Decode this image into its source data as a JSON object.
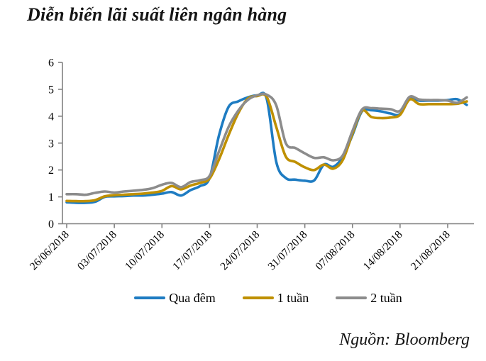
{
  "title": "Diễn biến lãi suất liên ngân hàng",
  "source": "Nguồn: Bloomberg",
  "colors": {
    "overnight_blue": "#1e7cc2",
    "one_week_gold": "#bf9000",
    "two_week_gray": "#8c8c8c",
    "axis_gray": "#808080",
    "text_black": "#000000"
  },
  "chart_data": {
    "type": "line",
    "title": "Diễn biến lãi suất liên ngân hàng",
    "xlabel": "",
    "ylabel": "",
    "ylim": [
      0,
      6
    ],
    "y_ticks": [
      0,
      1,
      2,
      3,
      4,
      5,
      6
    ],
    "grid": false,
    "smoothed": true,
    "legend_position": "bottom",
    "x_tick_indices": [
      0,
      5,
      10,
      15,
      20,
      25,
      30,
      35,
      40
    ],
    "x": [
      "26/06/2018",
      "27/06/2018",
      "28/06/2018",
      "29/06/2018",
      "02/07/2018",
      "03/07/2018",
      "04/07/2018",
      "05/07/2018",
      "06/07/2018",
      "09/07/2018",
      "10/07/2018",
      "11/07/2018",
      "12/07/2018",
      "13/07/2018",
      "16/07/2018",
      "17/07/2018",
      "18/07/2018",
      "19/07/2018",
      "20/07/2018",
      "23/07/2018",
      "24/07/2018",
      "25/07/2018",
      "26/07/2018",
      "27/07/2018",
      "30/07/2018",
      "31/07/2018",
      "01/08/2018",
      "02/08/2018",
      "03/08/2018",
      "06/08/2018",
      "07/08/2018",
      "08/08/2018",
      "09/08/2018",
      "10/08/2018",
      "13/08/2018",
      "14/08/2018",
      "15/08/2018",
      "16/08/2018",
      "17/08/2018",
      "20/08/2018",
      "21/08/2018",
      "22/08/2018",
      "23/08/2018"
    ],
    "series": [
      {
        "name": "Qua đêm",
        "color": "#1e7cc2",
        "values": [
          0.8,
          0.78,
          0.78,
          0.82,
          1.0,
          1.02,
          1.03,
          1.05,
          1.05,
          1.08,
          1.12,
          1.18,
          1.05,
          1.25,
          1.4,
          1.7,
          3.3,
          4.35,
          4.55,
          4.7,
          4.77,
          4.65,
          2.3,
          1.7,
          1.64,
          1.6,
          1.62,
          2.2,
          2.12,
          2.5,
          3.3,
          4.18,
          4.22,
          4.18,
          4.1,
          4.08,
          4.68,
          4.58,
          4.58,
          4.58,
          4.6,
          4.63,
          4.42
        ]
      },
      {
        "name": "1 tuần",
        "color": "#bf9000",
        "values": [
          0.85,
          0.84,
          0.84,
          0.88,
          1.02,
          1.06,
          1.08,
          1.1,
          1.12,
          1.16,
          1.22,
          1.4,
          1.28,
          1.42,
          1.52,
          1.68,
          2.4,
          3.3,
          4.1,
          4.65,
          4.75,
          4.72,
          3.6,
          2.5,
          2.3,
          2.1,
          2.0,
          2.2,
          2.05,
          2.38,
          3.35,
          4.2,
          3.97,
          3.93,
          3.95,
          4.05,
          4.62,
          4.45,
          4.45,
          4.45,
          4.45,
          4.46,
          4.55
        ]
      },
      {
        "name": "2 tuần",
        "color": "#8c8c8c",
        "values": [
          1.1,
          1.1,
          1.08,
          1.15,
          1.2,
          1.16,
          1.2,
          1.23,
          1.26,
          1.32,
          1.45,
          1.52,
          1.36,
          1.55,
          1.62,
          1.78,
          2.7,
          3.6,
          4.2,
          4.6,
          4.78,
          4.8,
          4.4,
          3.0,
          2.82,
          2.62,
          2.45,
          2.47,
          2.36,
          2.55,
          3.45,
          4.25,
          4.3,
          4.28,
          4.26,
          4.2,
          4.72,
          4.62,
          4.6,
          4.6,
          4.58,
          4.5,
          4.7
        ]
      }
    ]
  }
}
